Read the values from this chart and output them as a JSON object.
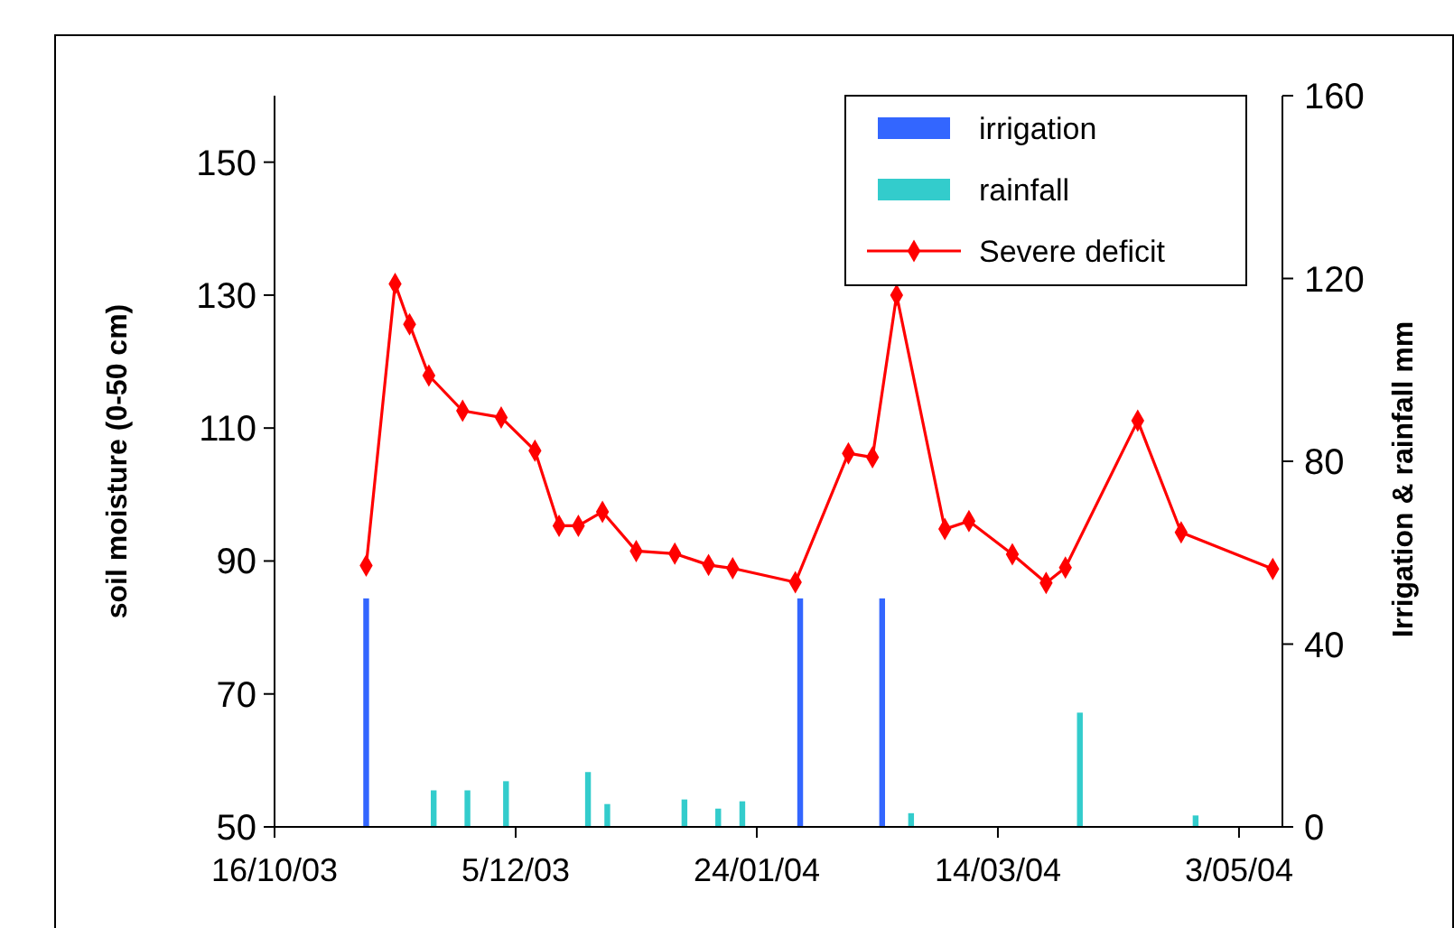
{
  "chart_data": {
    "type": "line",
    "ylabel": "soil moisture (0-50 cm)",
    "y2label": "Irrigation & rainfall mm",
    "xlim": [
      "2003-10-16",
      "2004-05-12"
    ],
    "xticks": [
      {
        "value": "2003-10-16",
        "label": "16/10/03"
      },
      {
        "value": "2003-12-05",
        "label": "5/12/03"
      },
      {
        "value": "2004-01-24",
        "label": "24/01/04"
      },
      {
        "value": "2004-03-14",
        "label": "14/03/04"
      },
      {
        "value": "2004-05-03",
        "label": "3/05/04"
      }
    ],
    "ylim": [
      50,
      160
    ],
    "yticks": [
      50,
      70,
      90,
      110,
      130,
      150
    ],
    "y2lim": [
      0,
      160
    ],
    "y2ticks": [
      0,
      40,
      80,
      120,
      160
    ],
    "grid": false,
    "legend": "top right",
    "series": [
      {
        "name": "irrigation",
        "type": "bar",
        "axis": "y2",
        "color": "#3366ff",
        "x": [
          "2003-11-04",
          "2004-02-02",
          "2004-02-19"
        ],
        "values": [
          50,
          50,
          50
        ]
      },
      {
        "name": "rainfall",
        "type": "bar",
        "axis": "y2",
        "color": "#33cccc",
        "x": [
          "2003-11-18",
          "2003-11-25",
          "2003-12-03",
          "2003-12-20",
          "2003-12-24",
          "2004-01-09",
          "2004-01-16",
          "2004-01-21",
          "2004-02-25",
          "2004-03-31",
          "2004-04-24"
        ],
        "values": [
          8,
          8,
          10,
          12,
          5,
          6,
          4,
          5.6,
          3,
          25,
          2.5
        ]
      },
      {
        "name": "Severe deficit",
        "color": "#ff0000",
        "marker": "diamond",
        "line_style": "solid",
        "x": [
          "2003-11-04",
          "2003-11-10",
          "2003-11-13",
          "2003-11-17",
          "2003-11-24",
          "2003-12-02",
          "2003-12-09",
          "2003-12-14",
          "2003-12-18",
          "2003-12-23",
          "2003-12-30",
          "2004-01-07",
          "2004-01-14",
          "2004-01-19",
          "2004-02-01",
          "2004-02-12",
          "2004-02-17",
          "2004-02-22",
          "2004-03-03",
          "2004-03-08",
          "2004-03-17",
          "2004-03-24",
          "2004-03-28",
          "2004-04-12",
          "2004-04-21",
          "2004-05-10"
        ],
        "values": [
          89.3,
          131.7,
          125.6,
          117.9,
          112.6,
          111.6,
          106.6,
          95.3,
          95.3,
          97.4,
          91.5,
          91.1,
          89.4,
          88.9,
          86.8,
          106.2,
          105.6,
          130,
          94.8,
          96,
          91,
          86.7,
          89,
          111.1,
          94.3,
          88.8
        ]
      }
    ]
  }
}
